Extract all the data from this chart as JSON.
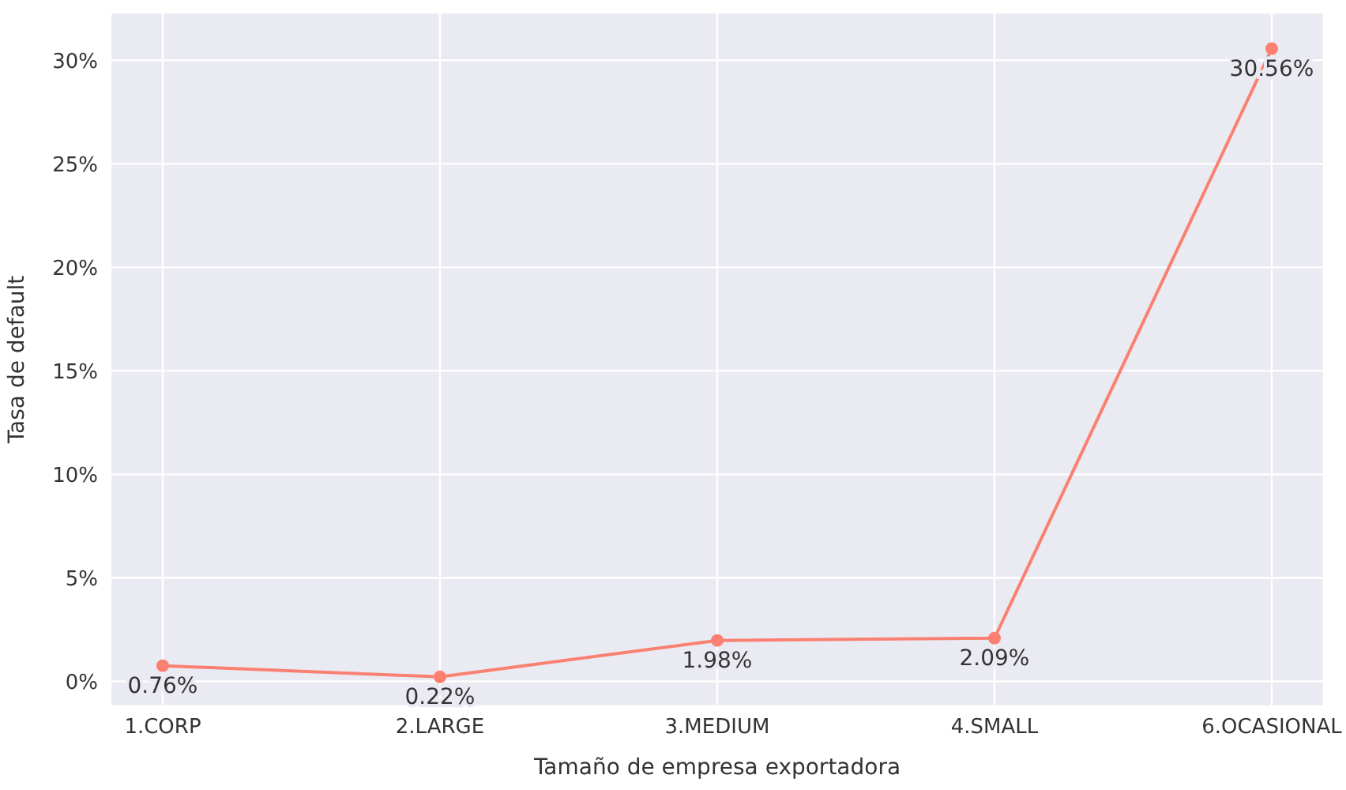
{
  "chart_data": {
    "type": "line",
    "xlabel": "Tamaño de empresa exportadora",
    "ylabel": "Tasa de default",
    "categories": [
      "1.CORP",
      "2.LARGE",
      "3.MEDIUM",
      "4.SMALL",
      "6.OCASIONAL"
    ],
    "series": [
      {
        "color": "#fa8072",
        "values": [
          0.76,
          0.22,
          1.98,
          2.09,
          30.56
        ],
        "value_labels": [
          "0.76%",
          "0.22%",
          "1.98%",
          "2.09%",
          "30.56%"
        ]
      }
    ],
    "ylim": [
      -1.2,
      32.3
    ],
    "yticks": [
      {
        "value": 0,
        "label": "0%"
      },
      {
        "value": 5,
        "label": "5%"
      },
      {
        "value": 10,
        "label": "10%"
      },
      {
        "value": 15,
        "label": "15%"
      },
      {
        "value": 20,
        "label": "20%"
      },
      {
        "value": 25,
        "label": "25%"
      },
      {
        "value": 30,
        "label": "30%"
      }
    ],
    "grid": true,
    "marker": "circle",
    "line_style": "solid"
  }
}
